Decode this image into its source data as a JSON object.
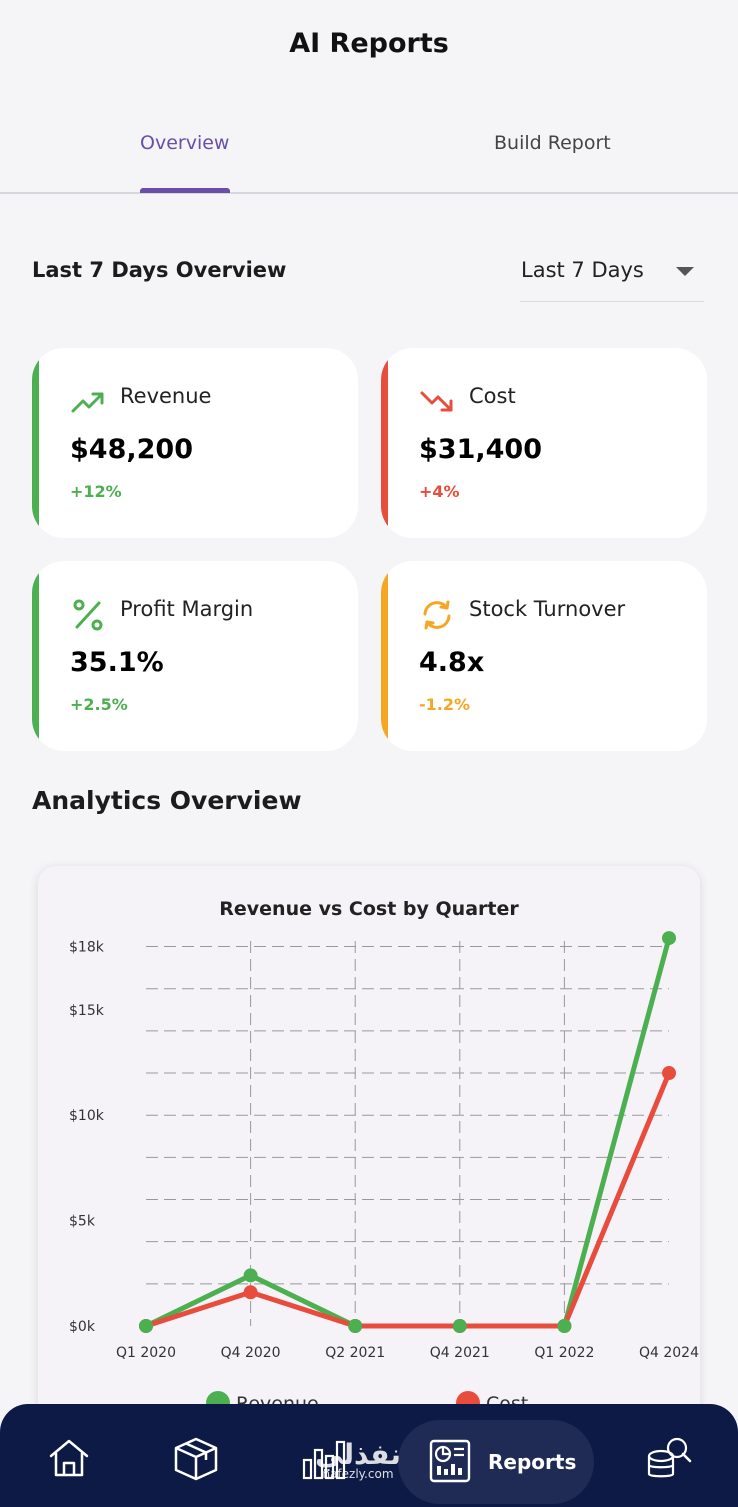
{
  "header": {
    "title": "AI Reports"
  },
  "tabs": [
    {
      "label": "Overview",
      "active": true
    },
    {
      "label": "Build Report",
      "active": false
    }
  ],
  "overview": {
    "title": "Last 7 Days Overview",
    "period_select": {
      "value": "Last 7 Days"
    }
  },
  "metrics": [
    {
      "label": "Revenue",
      "value": "$48,200",
      "change": "+12%",
      "icon": "trending-up-icon",
      "color": "#4caf50"
    },
    {
      "label": "Cost",
      "value": "$31,400",
      "change": "+4%",
      "icon": "trending-down-icon",
      "color": "#e74c3c"
    },
    {
      "label": "Profit Margin",
      "value": "35.1%",
      "change": "+2.5%",
      "icon": "percent-icon",
      "color": "#4caf50"
    },
    {
      "label": "Stock Turnover",
      "value": "4.8x",
      "change": "-1.2%",
      "icon": "refresh-icon",
      "color": "#f5a623"
    }
  ],
  "analytics": {
    "title": "Analytics Overview"
  },
  "chart_data": {
    "type": "line",
    "title": "Revenue vs Cost by Quarter",
    "categories": [
      "Q1 2020",
      "Q4 2020",
      "Q2 2021",
      "Q4 2021",
      "Q1 2022",
      "Q4 2024"
    ],
    "y_ticks": [
      {
        "value": 0,
        "label": "$0k"
      },
      {
        "value": 5000,
        "label": "$5k"
      },
      {
        "value": 10000,
        "label": "$10k"
      },
      {
        "value": 15000,
        "label": "$15k"
      },
      {
        "value": 18000,
        "label": "$18k"
      }
    ],
    "ylim": [
      0,
      18500
    ],
    "grid": true,
    "legend_placement": "bottom",
    "series": [
      {
        "name": "Revenue",
        "color": "#4caf50",
        "values": [
          0,
          2400,
          0,
          0,
          0,
          18400
        ]
      },
      {
        "name": "Cost",
        "color": "#e74c3c",
        "values": [
          0,
          1600,
          0,
          0,
          0,
          12000
        ]
      }
    ]
  },
  "bottom_nav": {
    "items": [
      {
        "icon": "home-icon"
      },
      {
        "icon": "box-icon"
      },
      {
        "icon": "bar-chart-icon"
      },
      {
        "icon": "report-icon",
        "label": "Reports",
        "active": true
      },
      {
        "icon": "database-search-icon"
      }
    ],
    "watermark": {
      "arabic": "نفذلي",
      "latin": "nafezly.com"
    }
  },
  "colors": {
    "accent": "#6a4fa8",
    "nav_bg": "#0d1a46"
  }
}
